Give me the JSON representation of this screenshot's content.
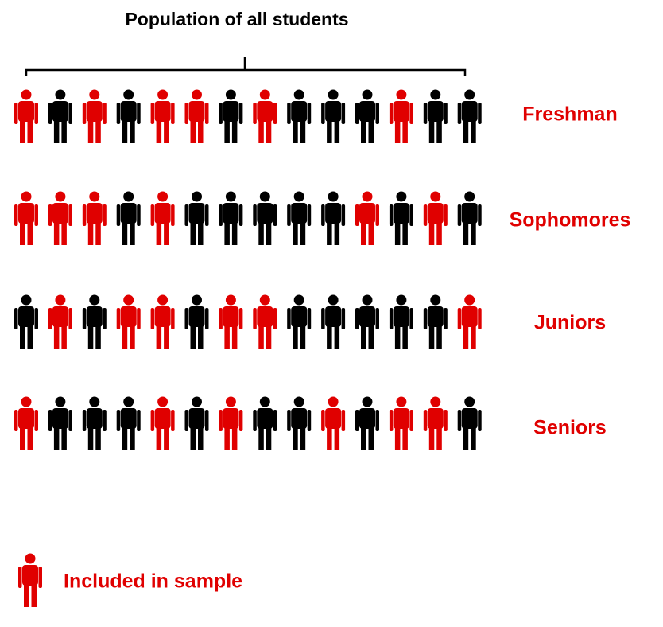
{
  "title": "Population of all students",
  "rows": [
    {
      "label": "Freshman",
      "included": [
        true,
        false,
        true,
        false,
        true,
        true,
        false,
        true,
        false,
        false,
        false,
        true,
        false,
        false
      ]
    },
    {
      "label": "Sophomores",
      "included": [
        true,
        true,
        true,
        false,
        true,
        false,
        false,
        false,
        false,
        false,
        true,
        false,
        true,
        false
      ]
    },
    {
      "label": "Juniors",
      "included": [
        false,
        true,
        false,
        true,
        true,
        false,
        true,
        true,
        false,
        false,
        false,
        false,
        false,
        true
      ]
    },
    {
      "label": "Seniors",
      "included": [
        true,
        false,
        false,
        false,
        true,
        false,
        true,
        false,
        false,
        true,
        false,
        true,
        true,
        false
      ]
    }
  ],
  "legend": {
    "label": "Included in sample"
  }
}
